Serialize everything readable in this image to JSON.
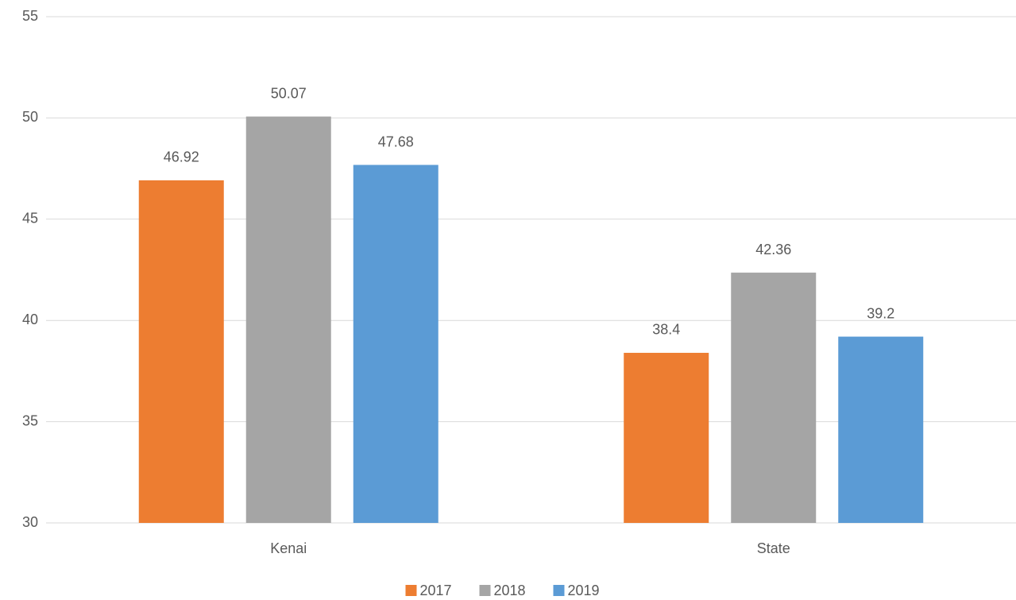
{
  "chart_data": {
    "type": "bar",
    "categories": [
      "Kenai",
      "State"
    ],
    "series": [
      {
        "name": "2017",
        "color": "#ed7d31",
        "values": [
          46.92,
          38.4
        ]
      },
      {
        "name": "2018",
        "color": "#a5a5a5",
        "values": [
          50.07,
          42.36
        ]
      },
      {
        "name": "2019",
        "color": "#5b9bd5",
        "values": [
          47.68,
          39.2
        ]
      }
    ],
    "ylim": [
      30,
      55
    ],
    "yticks": [
      30,
      35,
      40,
      45,
      50,
      55
    ],
    "grid": true,
    "legend": "bottom"
  }
}
